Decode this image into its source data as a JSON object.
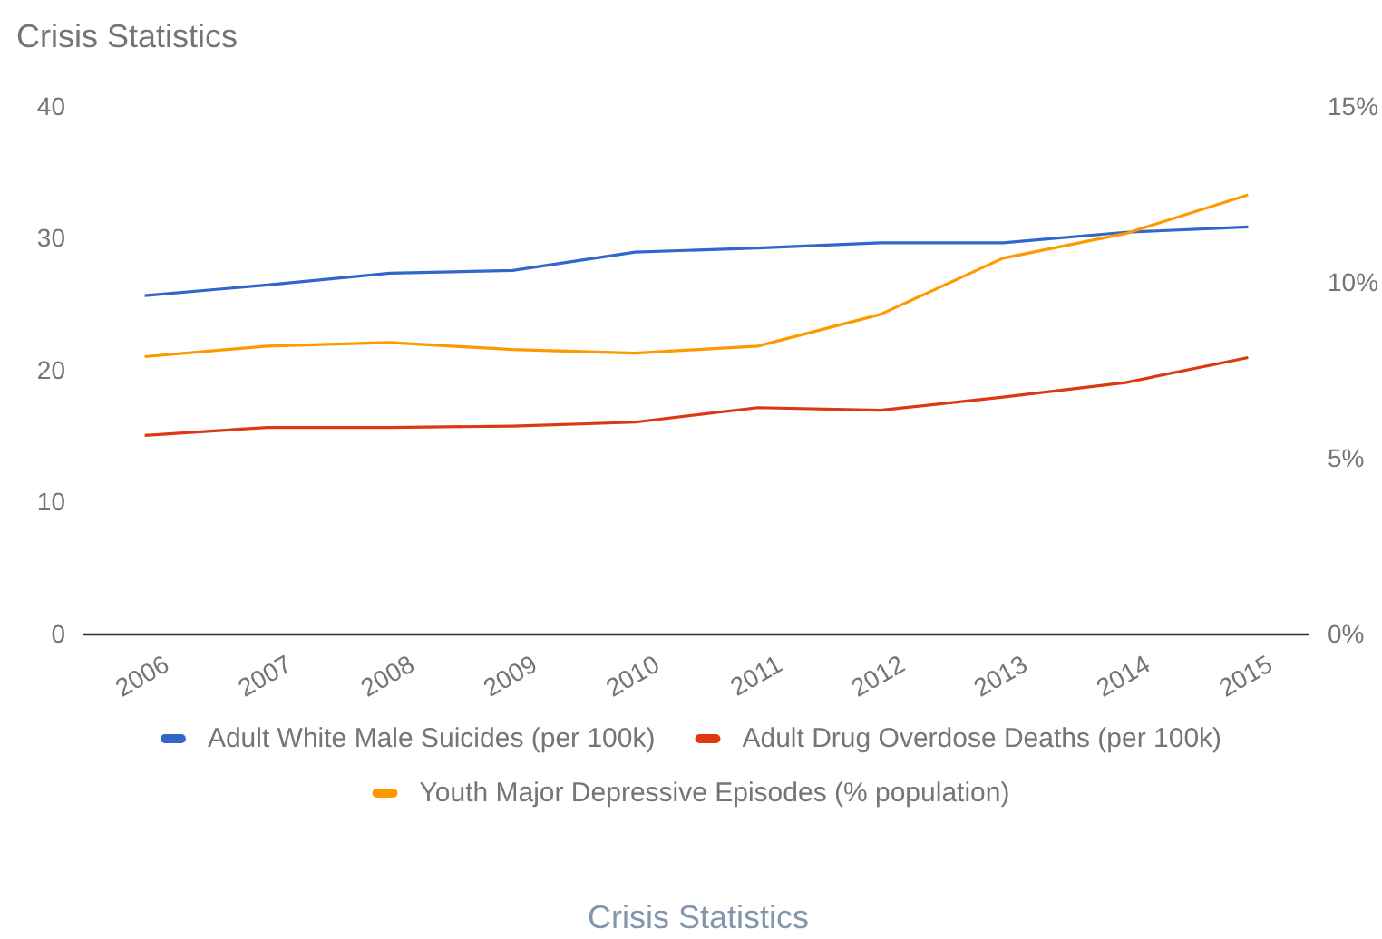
{
  "chart_data": {
    "type": "line",
    "title": "Crisis Statistics",
    "categories": [
      "2006",
      "2007",
      "2008",
      "2009",
      "2010",
      "2011",
      "2012",
      "2013",
      "2014",
      "2015"
    ],
    "series": [
      {
        "name": "Adult White Male Suicides (per 100k)",
        "color": "#3366cc",
        "values": [
          25.7,
          26.5,
          27.4,
          27.6,
          29.0,
          29.3,
          29.7,
          29.7,
          30.5,
          30.9
        ]
      },
      {
        "name": "Adult Drug Overdose Deaths (per 100k)",
        "color": "#dc3912",
        "values": [
          15.1,
          15.7,
          15.7,
          15.8,
          16.1,
          17.2,
          17.0,
          18.0,
          19.1,
          21.0
        ]
      },
      {
        "name": "Youth Major Depressive Episodes (% population)",
        "color": "#ff9900",
        "axis": "y2",
        "values": [
          7.9,
          8.2,
          8.3,
          8.1,
          8.0,
          8.2,
          9.1,
          10.7,
          11.4,
          12.5
        ]
      }
    ],
    "ylim": [
      0,
      40
    ],
    "yticks": [
      0,
      10,
      20,
      30,
      40
    ],
    "y2lim": [
      0,
      15
    ],
    "y2ticks": [
      {
        "value": 0,
        "label": "0%"
      },
      {
        "value": 5,
        "label": "5%"
      },
      {
        "value": 10,
        "label": "10%"
      },
      {
        "value": 15,
        "label": "15%"
      }
    ],
    "legend": "bottom",
    "grid": false,
    "marker": "none",
    "line_style": "solid",
    "annotations": [
      "Crisis Statistics"
    ]
  }
}
